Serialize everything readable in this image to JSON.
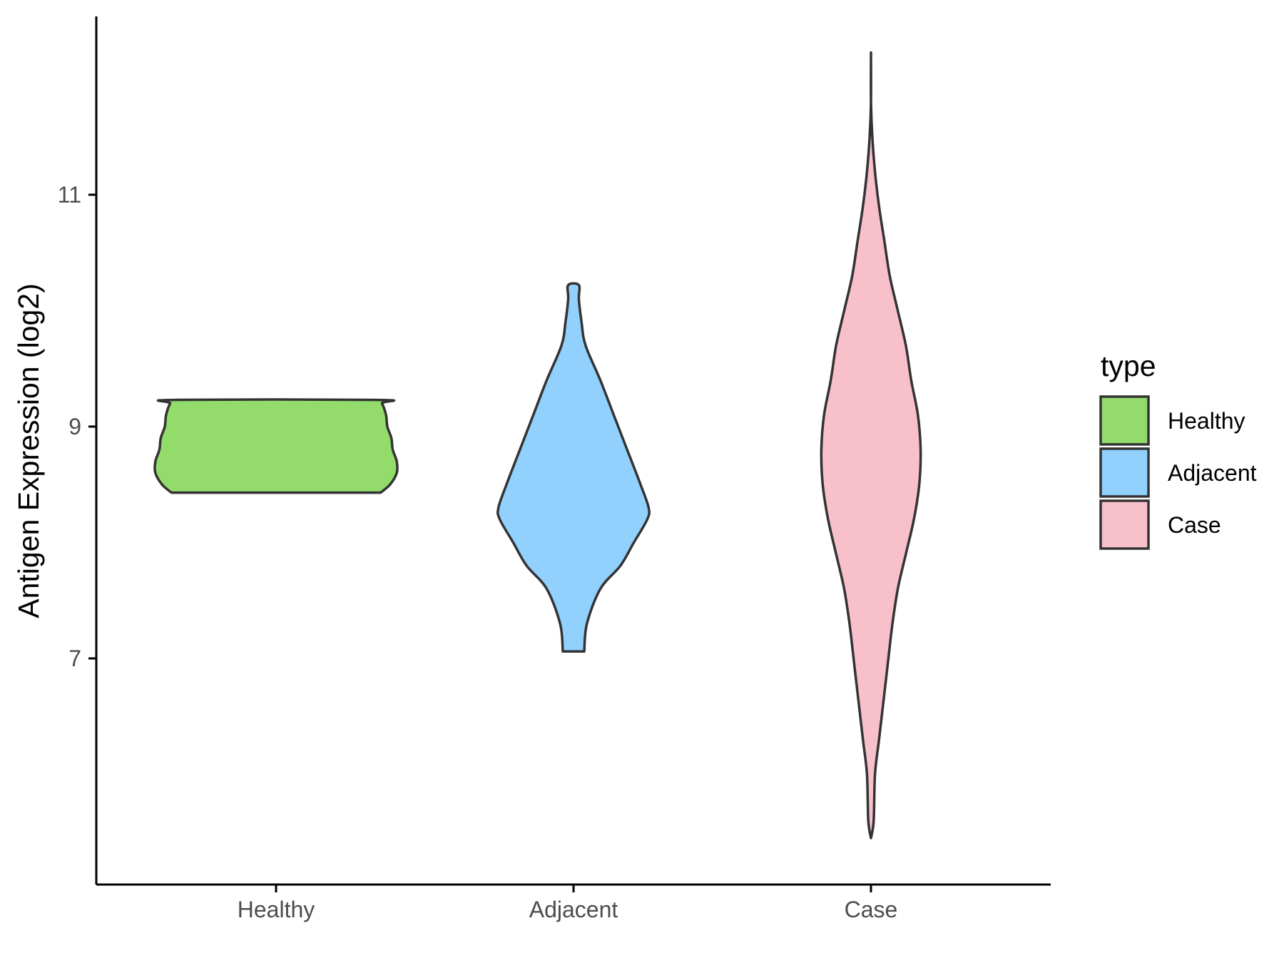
{
  "chart_data": {
    "type": "violin",
    "title": "",
    "xlabel": "",
    "ylabel": "Antigen Expression (log2)",
    "categories": [
      "Healthy",
      "Adjacent",
      "Case"
    ],
    "y_ticks": [
      "7",
      "9",
      "11"
    ],
    "ylim": [
      5.1,
      12.6
    ],
    "grid": false,
    "legend": {
      "title": "type",
      "position": "right",
      "entries": [
        "Healthy",
        "Adjacent",
        "Case"
      ]
    },
    "colors": {
      "Healthy": "#93dc6b",
      "Adjacent": "#92d1fd",
      "Case": "#f7c0cb",
      "outline": "#333333"
    },
    "series": [
      {
        "category": "Healthy",
        "y_min": 8.43,
        "y_max": 9.23,
        "density": [
          [
            8.43,
            0.78
          ],
          [
            8.5,
            0.85
          ],
          [
            8.6,
            0.9
          ],
          [
            8.7,
            0.9
          ],
          [
            8.8,
            0.87
          ],
          [
            8.9,
            0.86
          ],
          [
            9.0,
            0.83
          ],
          [
            9.1,
            0.82
          ],
          [
            9.2,
            0.79
          ],
          [
            9.23,
            0.76
          ]
        ]
      },
      {
        "category": "Adjacent",
        "y_min": 7.06,
        "y_max": 10.22,
        "density": [
          [
            7.06,
            0.08
          ],
          [
            7.3,
            0.1
          ],
          [
            7.6,
            0.2
          ],
          [
            7.8,
            0.35
          ],
          [
            8.0,
            0.45
          ],
          [
            8.2,
            0.55
          ],
          [
            8.3,
            0.56
          ],
          [
            8.5,
            0.5
          ],
          [
            8.8,
            0.4
          ],
          [
            9.1,
            0.3
          ],
          [
            9.4,
            0.2
          ],
          [
            9.7,
            0.09
          ],
          [
            9.9,
            0.06
          ],
          [
            10.1,
            0.04
          ],
          [
            10.22,
            0.04
          ]
        ]
      },
      {
        "category": "Case",
        "y_min": 5.45,
        "y_max": 12.18,
        "density": [
          [
            5.45,
            0.0
          ],
          [
            5.6,
            0.02
          ],
          [
            6.0,
            0.03
          ],
          [
            6.3,
            0.06
          ],
          [
            6.7,
            0.1
          ],
          [
            7.0,
            0.13
          ],
          [
            7.3,
            0.16
          ],
          [
            7.6,
            0.2
          ],
          [
            7.9,
            0.26
          ],
          [
            8.2,
            0.32
          ],
          [
            8.5,
            0.36
          ],
          [
            8.8,
            0.37
          ],
          [
            9.1,
            0.35
          ],
          [
            9.4,
            0.3
          ],
          [
            9.7,
            0.26
          ],
          [
            10.0,
            0.2
          ],
          [
            10.3,
            0.14
          ],
          [
            10.6,
            0.1
          ],
          [
            10.9,
            0.06
          ],
          [
            11.2,
            0.03
          ],
          [
            11.5,
            0.01
          ],
          [
            11.8,
            0.0
          ],
          [
            12.18,
            0.0
          ]
        ]
      }
    ]
  }
}
